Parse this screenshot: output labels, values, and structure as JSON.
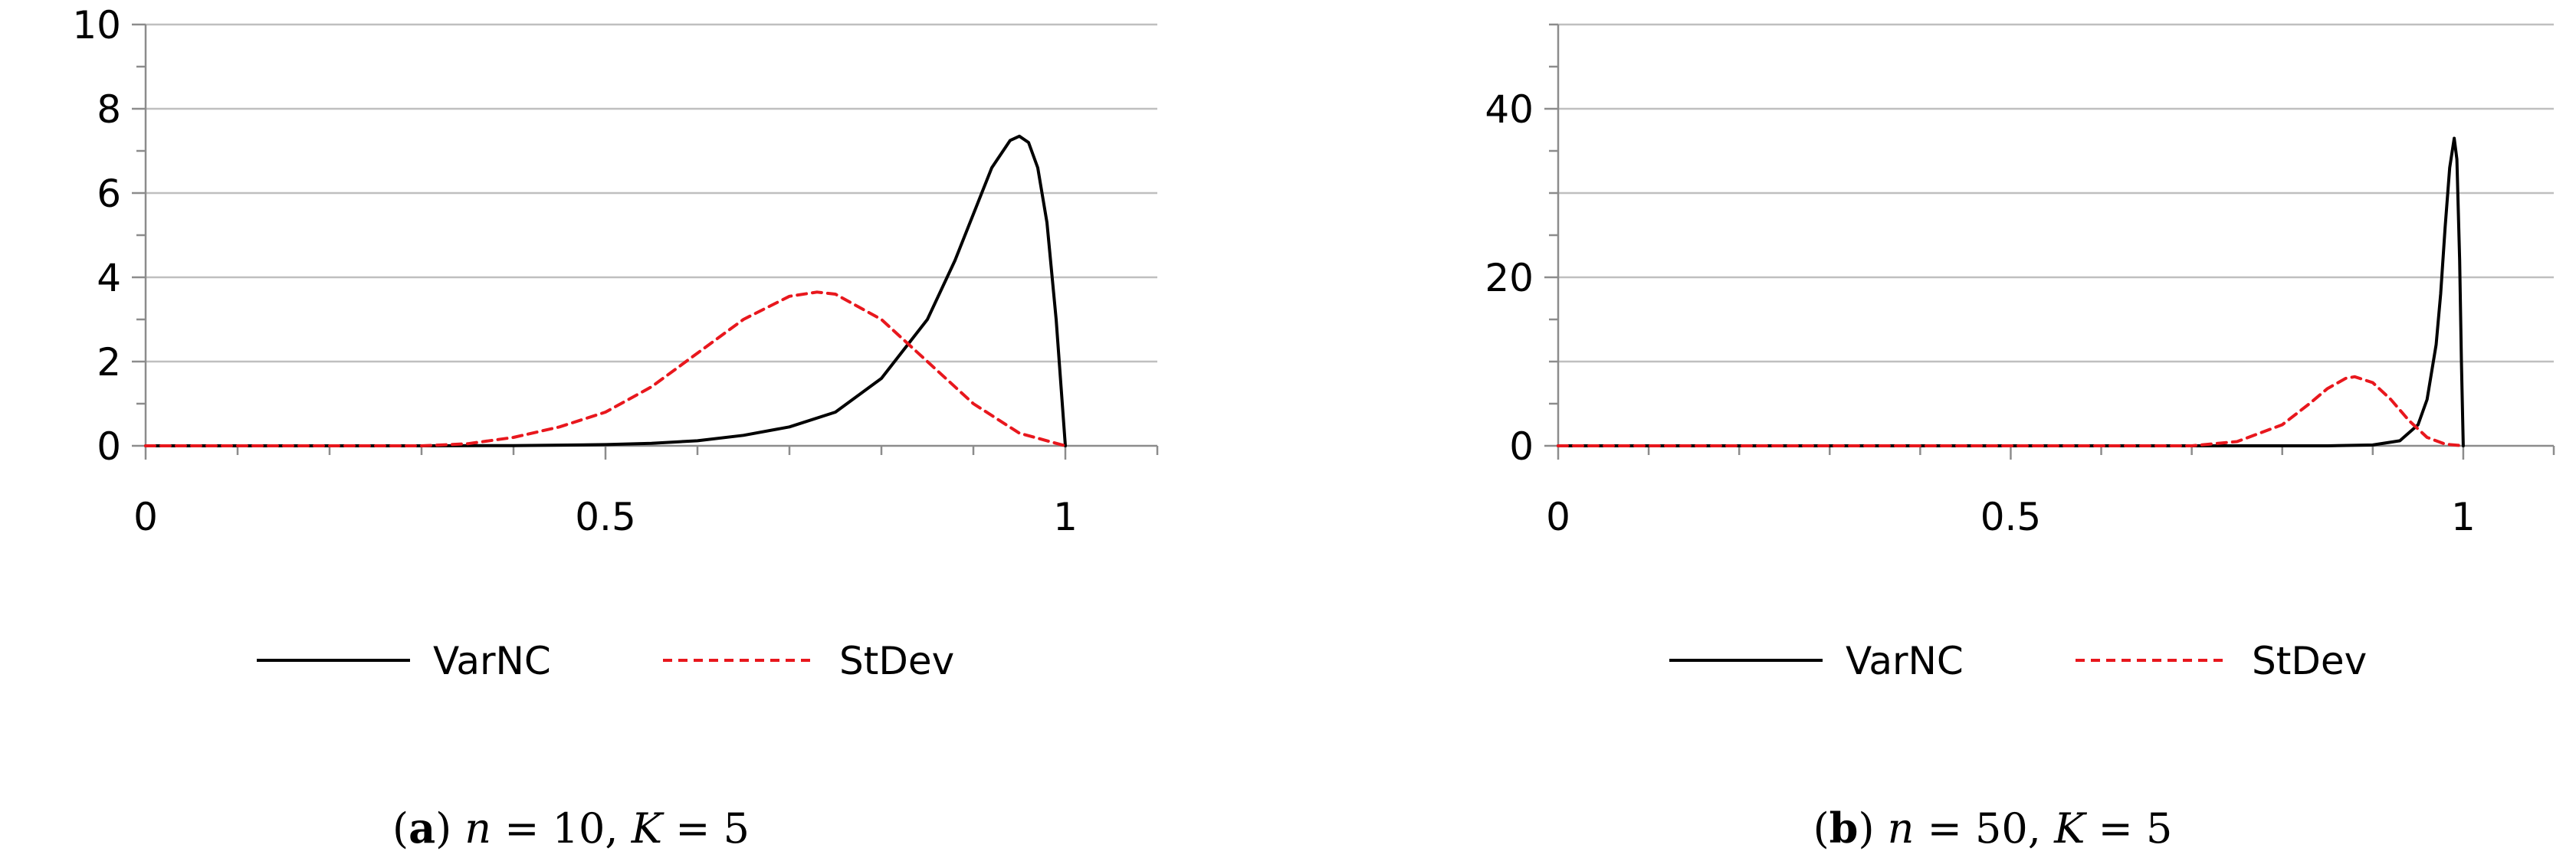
{
  "chart_data": [
    {
      "type": "line",
      "title": "",
      "xlabel": "",
      "ylabel": "",
      "xlim": [
        0,
        1.1
      ],
      "ylim": [
        0,
        10
      ],
      "x_ticks": [
        0,
        0.5,
        1
      ],
      "x_tick_labels": [
        "0",
        "0.5",
        "1"
      ],
      "y_ticks": [
        0,
        2,
        4,
        6,
        8,
        10
      ],
      "y_tick_labels": [
        "0",
        "2",
        "4",
        "6",
        "8",
        "10"
      ],
      "grid": "horizontal",
      "legend_position": "bottom",
      "caption": {
        "letter": "a",
        "n_symbol": "n",
        "n_value": "= 10,",
        "k_symbol": "K",
        "k_value": "= 5"
      },
      "series": [
        {
          "name": "VarNC",
          "color": "#000000",
          "style": "solid",
          "x": [
            0,
            0.3,
            0.4,
            0.5,
            0.55,
            0.6,
            0.65,
            0.7,
            0.75,
            0.8,
            0.85,
            0.88,
            0.9,
            0.92,
            0.94,
            0.95,
            0.96,
            0.97,
            0.98,
            0.99,
            1.0
          ],
          "y": [
            0,
            0,
            0.005,
            0.03,
            0.06,
            0.12,
            0.25,
            0.45,
            0.8,
            1.6,
            3.0,
            4.4,
            5.5,
            6.6,
            7.25,
            7.35,
            7.2,
            6.6,
            5.3,
            3.0,
            0
          ]
        },
        {
          "name": "StDev",
          "color": "#e8171d",
          "style": "dashed",
          "x": [
            0,
            0.3,
            0.35,
            0.4,
            0.45,
            0.5,
            0.55,
            0.6,
            0.65,
            0.7,
            0.73,
            0.75,
            0.8,
            0.85,
            0.9,
            0.95,
            1.0
          ],
          "y": [
            0,
            0,
            0.05,
            0.2,
            0.45,
            0.8,
            1.4,
            2.2,
            3.0,
            3.55,
            3.65,
            3.6,
            3.0,
            2.0,
            1.0,
            0.3,
            0
          ]
        }
      ]
    },
    {
      "type": "line",
      "title": "",
      "xlabel": "",
      "ylabel": "",
      "xlim": [
        0,
        1.1
      ],
      "ylim": [
        0,
        50
      ],
      "x_ticks": [
        0,
        0.5,
        1
      ],
      "x_tick_labels": [
        "0",
        "0.5",
        "1"
      ],
      "y_ticks": [
        0,
        20,
        40
      ],
      "y_tick_labels": [
        "0",
        "20",
        "40"
      ],
      "y_grid": [
        0,
        10,
        20,
        30,
        40,
        50
      ],
      "grid": "horizontal",
      "legend_position": "bottom",
      "caption": {
        "letter": "b",
        "n_symbol": "n",
        "n_value": "= 50,",
        "k_symbol": "K",
        "k_value": "= 5"
      },
      "series": [
        {
          "name": "VarNC",
          "color": "#000000",
          "style": "solid",
          "x": [
            0,
            0.85,
            0.9,
            0.93,
            0.95,
            0.96,
            0.97,
            0.975,
            0.98,
            0.985,
            0.99,
            0.993,
            0.996,
            0.998,
            1.0
          ],
          "y": [
            0,
            0,
            0.1,
            0.6,
            2.5,
            5.5,
            12,
            18,
            26,
            33,
            36.5,
            34,
            22,
            10,
            0
          ]
        },
        {
          "name": "StDev",
          "color": "#e8171d",
          "style": "dashed",
          "x": [
            0,
            0.7,
            0.75,
            0.8,
            0.83,
            0.85,
            0.87,
            0.88,
            0.9,
            0.92,
            0.94,
            0.96,
            0.98,
            1.0
          ],
          "y": [
            0,
            0,
            0.5,
            2.5,
            5,
            6.8,
            8,
            8.2,
            7.5,
            5.5,
            3,
            1,
            0.2,
            0
          ]
        }
      ]
    }
  ]
}
